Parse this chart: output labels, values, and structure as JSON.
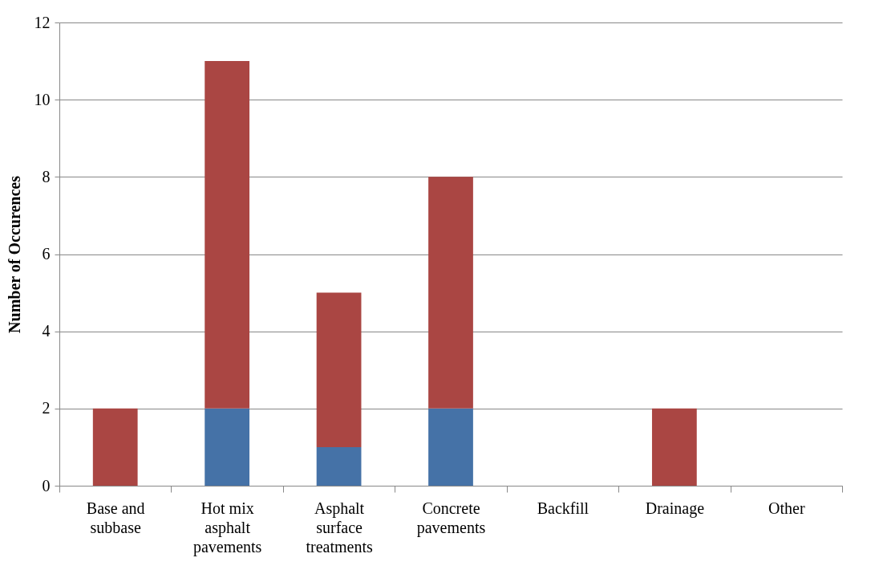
{
  "chart_data": {
    "type": "bar",
    "ylabel": "Number of Occurences",
    "categories": [
      "Base and subbase",
      "Hot mix asphalt pavements",
      "Asphalt surface treatments",
      "Concrete pavements",
      "Backfill",
      "Drainage",
      "Other"
    ],
    "series": [
      {
        "color": "#4572a7",
        "values": [
          0,
          2,
          1,
          2,
          0,
          0,
          0
        ]
      },
      {
        "color": "#aa4643",
        "values": [
          2,
          9,
          4,
          6,
          0,
          2,
          0
        ]
      }
    ],
    "stacked": true,
    "ylim": [
      0,
      12
    ],
    "yticks": [
      0,
      2,
      4,
      6,
      8,
      10,
      12
    ],
    "grid": "y"
  }
}
